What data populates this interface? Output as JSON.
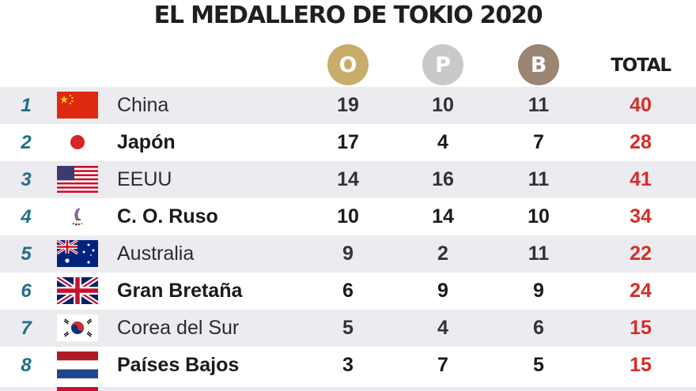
{
  "title": "EL MEDALLERO DE TOKIO 2020",
  "headers": {
    "gold": "O",
    "silver": "P",
    "bronze": "B",
    "total": "TOTAL"
  },
  "rows": [
    {
      "rank": "1",
      "country": "China",
      "flag": "china-flag-icon",
      "gold": "19",
      "silver": "10",
      "bronze": "11",
      "total": "40"
    },
    {
      "rank": "2",
      "country": "Japón",
      "flag": "japan-flag-icon",
      "gold": "17",
      "silver": "4",
      "bronze": "7",
      "total": "28"
    },
    {
      "rank": "3",
      "country": "EEUU",
      "flag": "usa-flag-icon",
      "gold": "14",
      "silver": "16",
      "bronze": "11",
      "total": "41"
    },
    {
      "rank": "4",
      "country": "C. O. Ruso",
      "flag": "roc-emblem-icon",
      "gold": "10",
      "silver": "14",
      "bronze": "10",
      "total": "34"
    },
    {
      "rank": "5",
      "country": "Australia",
      "flag": "australia-flag-icon",
      "gold": "9",
      "silver": "2",
      "bronze": "11",
      "total": "22"
    },
    {
      "rank": "6",
      "country": "Gran Bretaña",
      "flag": "uk-flag-icon",
      "gold": "6",
      "silver": "9",
      "bronze": "9",
      "total": "24"
    },
    {
      "rank": "7",
      "country": "Corea del Sur",
      "flag": "south-korea-flag-icon",
      "gold": "5",
      "silver": "4",
      "bronze": "6",
      "total": "15"
    },
    {
      "rank": "8",
      "country": "Países Bajos",
      "flag": "netherlands-flag-icon",
      "gold": "3",
      "silver": "7",
      "bronze": "5",
      "total": "15"
    }
  ],
  "colors": {
    "gold": "#c8ad6a",
    "silver": "#c9c9c9",
    "bronze": "#9a8472",
    "total": "#d42e2a",
    "rank": "#1f6f86",
    "row_shade": "#ecebef"
  }
}
